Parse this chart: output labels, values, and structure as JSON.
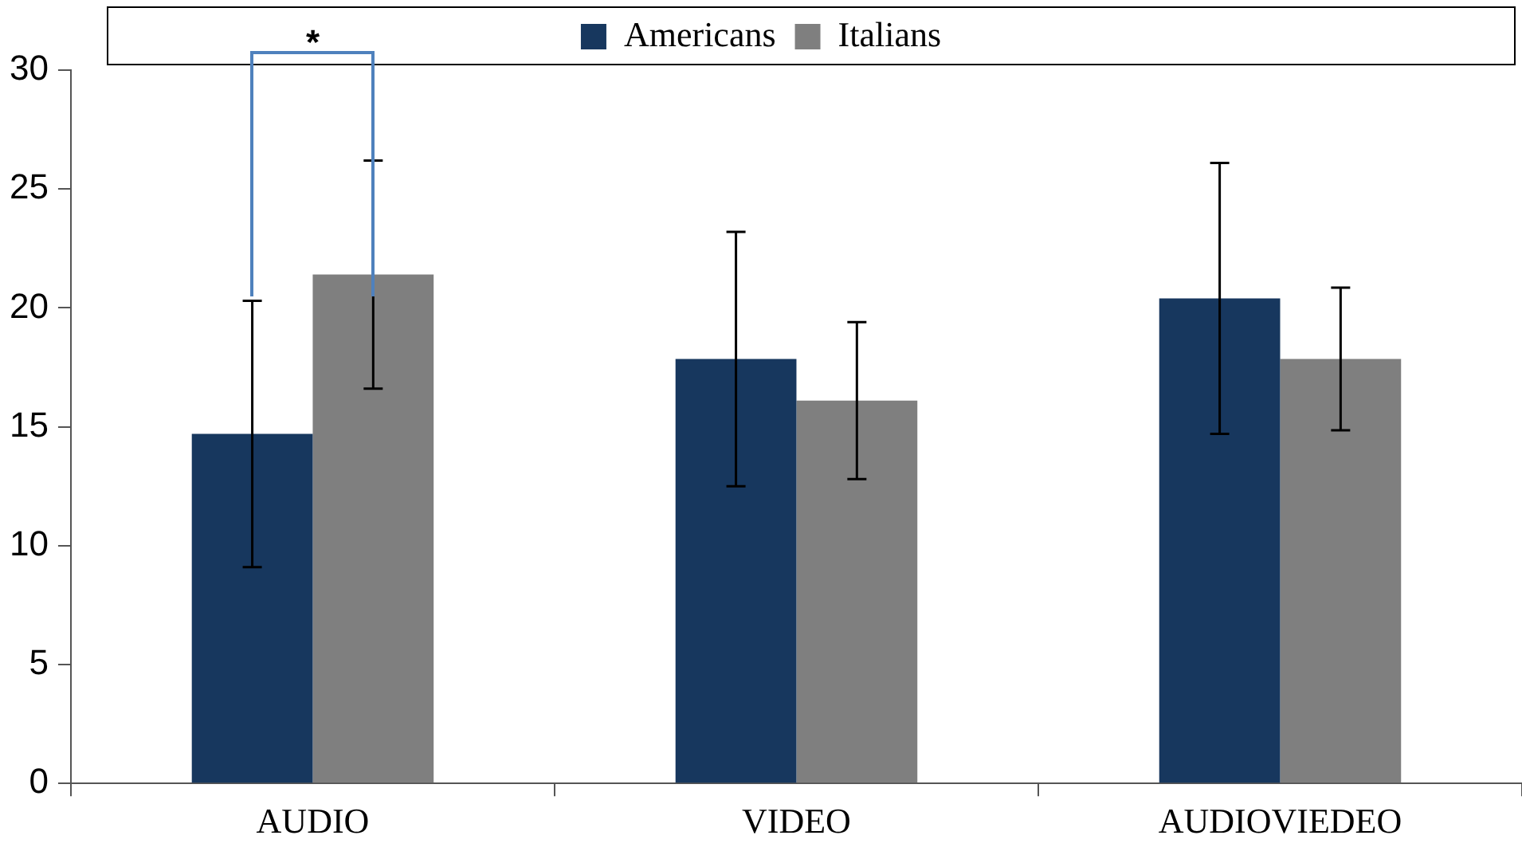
{
  "chart_data": {
    "type": "bar",
    "categories": [
      "AUDIO",
      "VIDEO",
      "AUDIOVIEDEO"
    ],
    "series": [
      {
        "name": "Americans",
        "color": "#17375e",
        "values": [
          14.7,
          17.85,
          20.4
        ],
        "errors": [
          5.6,
          5.35,
          5.7
        ]
      },
      {
        "name": "Italians",
        "color": "#7f7f7f",
        "values": [
          21.4,
          16.1,
          17.85
        ],
        "errors": [
          4.8,
          3.3,
          3.0
        ]
      }
    ],
    "ylim": [
      0,
      30
    ],
    "yticks": [
      0,
      5,
      10,
      15,
      20,
      25,
      30
    ],
    "grid": false,
    "legend": "top",
    "annotations": [
      "*"
    ]
  }
}
